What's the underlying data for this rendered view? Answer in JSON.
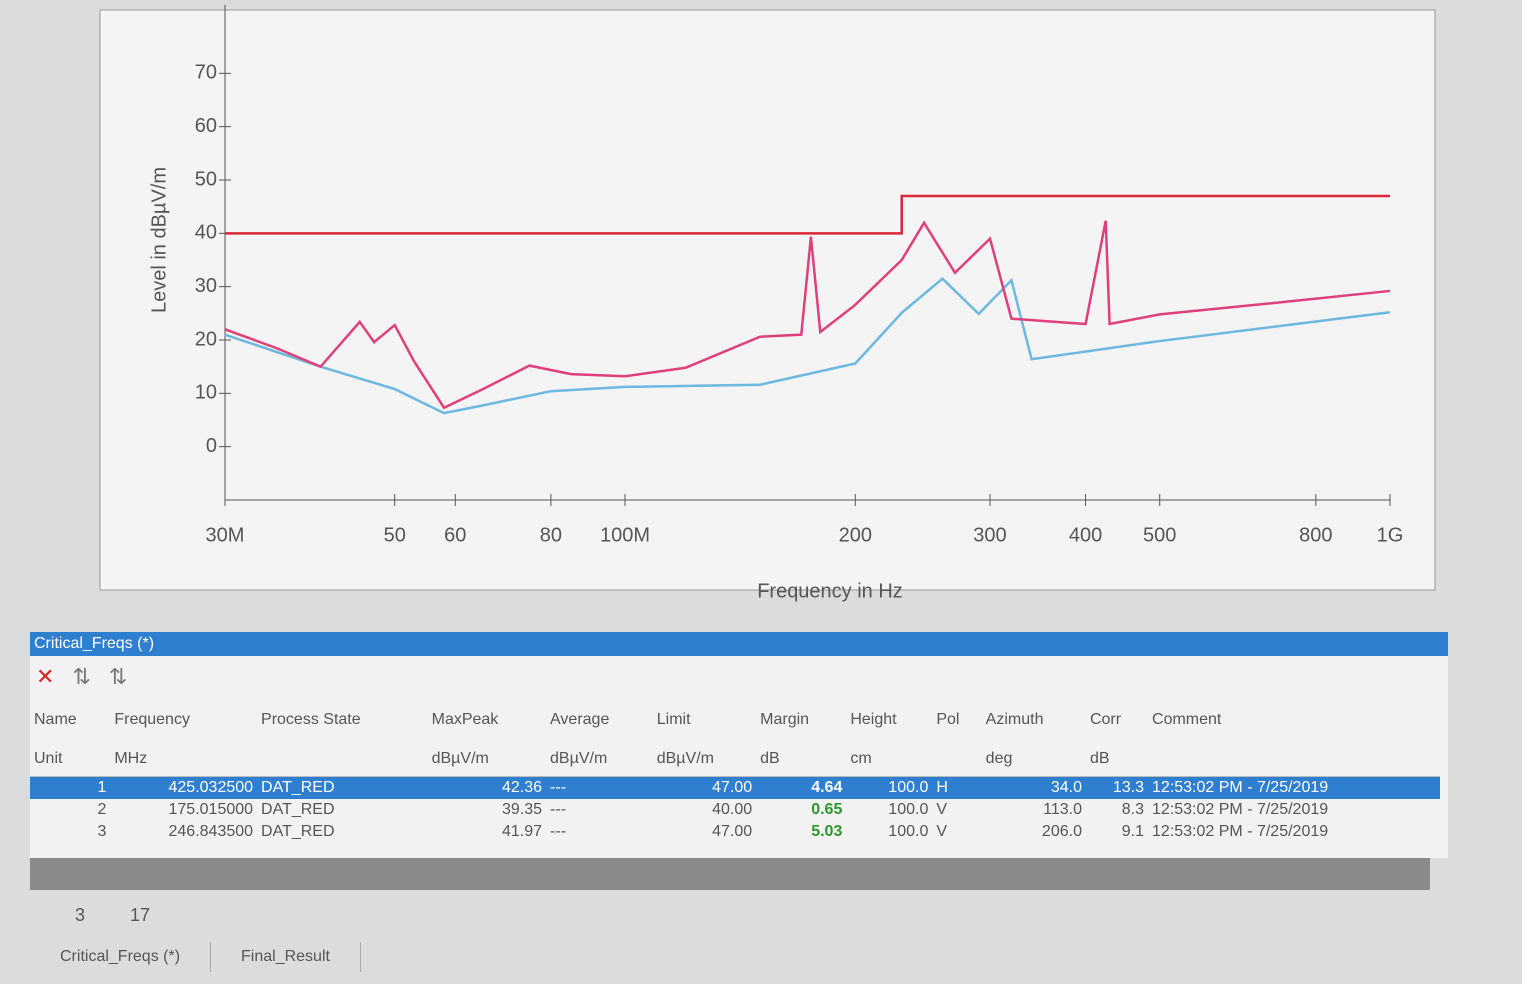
{
  "chart_data": {
    "type": "line",
    "log_x": true,
    "ylabel": "Level in dBµV/m",
    "xlabel": "Frequency in Hz",
    "xlim": [
      30,
      1000
    ],
    "ylim": [
      -10,
      80
    ],
    "xticks": [
      {
        "value": 30,
        "label": "30M"
      },
      50,
      60,
      80,
      {
        "value": 100,
        "label": "100M"
      },
      200,
      300,
      400,
      500,
      800,
      {
        "value": 1000,
        "label": "1G"
      }
    ],
    "yticks": [
      0,
      10,
      20,
      30,
      40,
      50,
      60,
      70
    ],
    "series": [
      {
        "color": "#d8283a",
        "x": [
          30,
          230,
          230,
          1000
        ],
        "values": [
          40,
          40,
          47,
          47
        ]
      },
      {
        "color": "#6cb8e0",
        "x": [
          30,
          40,
          50,
          58,
          65,
          80,
          100,
          150,
          200,
          230,
          260,
          290,
          320,
          340,
          500,
          1000
        ],
        "values": [
          21,
          15,
          10.8,
          6.3,
          7.7,
          10.4,
          11.2,
          11.6,
          15.6,
          25.1,
          31.5,
          24.9,
          31.2,
          16.4,
          19.8,
          25.2
        ]
      },
      {
        "color": "#e0407a",
        "x": [
          30,
          35,
          40,
          45,
          47,
          50,
          53,
          58,
          65,
          75,
          85,
          100,
          120,
          150,
          170,
          175,
          180,
          200,
          230,
          246,
          270,
          300,
          320,
          400,
          425,
          430,
          500,
          700,
          1000
        ],
        "values": [
          22,
          18.5,
          15,
          23.4,
          19.6,
          22.8,
          16,
          7.3,
          10.7,
          15.2,
          13.6,
          13.2,
          14.8,
          20.6,
          21,
          39.35,
          21.5,
          26.6,
          35,
          41.97,
          32.6,
          39,
          24,
          23,
          42.36,
          23,
          24.8,
          26.9,
          29.2
        ]
      }
    ]
  },
  "panel": {
    "title": "Critical_Freqs (*)"
  },
  "table": {
    "header": [
      "Name",
      "Frequency",
      "Process State",
      "MaxPeak",
      "Average",
      "Limit",
      "Margin",
      "Height",
      "Pol",
      "Azimuth",
      "Corr",
      "Comment"
    ],
    "units": [
      "Unit",
      "MHz",
      null,
      "dBµV/m",
      "dBµV/m",
      "dBµV/m",
      "dB",
      "cm",
      null,
      "deg",
      "dB",
      null
    ],
    "rows": [
      [
        "1",
        "425.032500",
        "DAT_RED",
        "42.36",
        "---",
        "47.00",
        "4.64",
        "100.0",
        "H",
        "34.0",
        "13.3",
        "12:53:02 PM - 7/25/2019"
      ],
      [
        "2",
        "175.015000",
        "DAT_RED",
        "39.35",
        "---",
        "40.00",
        "0.65",
        "100.0",
        "V",
        "113.0",
        "8.3",
        "12:53:02 PM - 7/25/2019"
      ],
      [
        "3",
        "246.843500",
        "DAT_RED",
        "41.97",
        "---",
        "47.00",
        "5.03",
        "100.0",
        "V",
        "206.0",
        "9.1",
        "12:53:02 PM - 7/25/2019"
      ]
    ]
  },
  "status": [
    "3",
    "17"
  ],
  "tabs": [
    "Critical_Freqs (*)",
    "Final_Result"
  ]
}
